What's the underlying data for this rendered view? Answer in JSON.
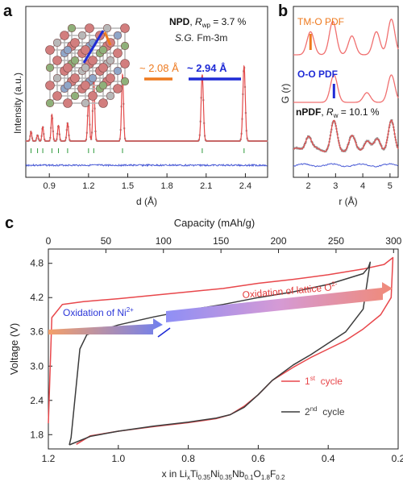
{
  "panels": {
    "a": {
      "letter": "a",
      "ylabel": "Intensity (a.u.)",
      "xlabel": "d (Å)",
      "xticks": [
        "0.9",
        "1.2",
        "1.5",
        "1.8",
        "2.1",
        "2.4"
      ],
      "npd_label": "NPD",
      "rwp_symbol": "R",
      "rwp_sub": "wp",
      "rwp_value": " = 3.7 %",
      "sg_prefix": "S.G.",
      "sg_value": " Fm-3m",
      "dist_orange": "~ 2.08 Å",
      "dist_blue": "~ 2.94 Å"
    },
    "b": {
      "letter": "b",
      "ylabel": "G (r)",
      "xlabel": "r (Å)",
      "xticks": [
        "2",
        "3",
        "4",
        "5"
      ],
      "label_tmo": "TM-O PDF",
      "label_oo": "O-O PDF",
      "npdf_label": "nPDF",
      "rw_symbol": "R",
      "rw_sub": "w",
      "rw_value": " = 10.1 %"
    },
    "c": {
      "letter": "c",
      "top_axis_label": "Capacity (mAh/g)",
      "top_ticks": [
        "0",
        "50",
        "100",
        "150",
        "200",
        "250",
        "300"
      ],
      "ylabel": "Voltage (V)",
      "yticks": [
        "1.8",
        "2.4",
        "3.0",
        "3.6",
        "4.2",
        "4.8"
      ],
      "xticks": [
        "1.2",
        "1.0",
        "0.8",
        "0.6",
        "0.4",
        "0.2"
      ],
      "xlabel_parts": [
        "x in Li",
        "x",
        "Ti",
        "0.35",
        "Ni",
        "0.35",
        "Nb",
        "0.1",
        "O",
        "1.8",
        "F",
        "0.2"
      ],
      "ann_ni": "Oxidation of Ni",
      "ann_ni_sup": "2+",
      "ann_o": "Oxidation of lattice O",
      "ann_o_sup": "2-",
      "legend": [
        {
          "label": "1",
          "sup": "st",
          "rest": "  cycle",
          "color": "#e8474b"
        },
        {
          "label": "2",
          "sup": "nd",
          "rest": "  cycle",
          "color": "#3c3c3c"
        }
      ]
    }
  },
  "colors": {
    "cycle1": "#e8474b",
    "cycle2": "#3c3c3c",
    "fit": "#e34a4a",
    "obs": "#999999",
    "diff": "#4a5bd6",
    "ticks": "#2e9a3c",
    "orange": "#ee7a1f",
    "blue": "#1f2bd6",
    "pdf": "#f07070"
  },
  "chart_data": [
    {
      "panel": "a",
      "type": "line",
      "xlabel": "d (Å)",
      "ylabel": "Intensity (a.u.)",
      "xlim": [
        0.72,
        2.57
      ],
      "peaks_d": [
        0.76,
        0.81,
        0.85,
        0.92,
        0.97,
        1.04,
        1.2,
        1.24,
        1.46,
        2.07,
        2.39
      ],
      "peaks_h": [
        0.08,
        0.05,
        0.12,
        0.22,
        0.13,
        0.15,
        0.35,
        0.52,
        0.55,
        0.55,
        0.62
      ],
      "bragg_ticks_d": [
        0.76,
        0.81,
        0.85,
        0.92,
        0.97,
        1.04,
        1.2,
        1.24,
        1.46,
        2.07,
        2.39
      ],
      "series": [
        {
          "name": "NPD"
        }
      ]
    },
    {
      "panel": "b",
      "type": "line",
      "xlabel": "r (Å)",
      "ylabel": "G (r)",
      "xlim": [
        1.45,
        5.3
      ],
      "series": [
        {
          "name": "TM-O PDF",
          "peaks_r": [
            2.08,
            2.9,
            3.6,
            4.5,
            5.05
          ],
          "peaks_h": [
            0.55,
            0.8,
            0.45,
            0.55,
            0.85
          ]
        },
        {
          "name": "O-O PDF",
          "peaks_r": [
            2.94,
            4.15,
            5.05
          ],
          "peaks_h": [
            0.85,
            0.3,
            0.85
          ]
        },
        {
          "name": "nPDF",
          "peaks_r": [
            2.0,
            2.94,
            3.6,
            4.15,
            4.55,
            5.05
          ],
          "peaks_h": [
            0.4,
            0.75,
            0.35,
            0.25,
            0.3,
            0.75
          ]
        }
      ]
    },
    {
      "panel": "c",
      "type": "line",
      "xlabel": "x in LixTi0.35Ni0.35Nb0.1O1.8F0.2",
      "ylabel": "Voltage (V)",
      "top_xlabel": "Capacity (mAh/g)",
      "xlim": [
        1.2,
        0.2
      ],
      "ylim": [
        1.55,
        5.05
      ],
      "series": [
        {
          "name": "1st cycle",
          "x": [
            1.2,
            1.19,
            1.16,
            1.1,
            1.0,
            0.9,
            0.8,
            0.7,
            0.6,
            0.5,
            0.4,
            0.3,
            0.24,
            0.215,
            0.22,
            0.25,
            0.3,
            0.35,
            0.4,
            0.45,
            0.5,
            0.56,
            0.6,
            0.64,
            0.68,
            0.72,
            0.8,
            0.9,
            1.0,
            1.08,
            1.12
          ],
          "y": [
            2.0,
            3.85,
            4.08,
            4.13,
            4.18,
            4.24,
            4.3,
            4.36,
            4.45,
            4.52,
            4.6,
            4.7,
            4.78,
            4.9,
            4.2,
            3.9,
            3.65,
            3.45,
            3.3,
            3.15,
            2.98,
            2.75,
            2.5,
            2.3,
            2.15,
            2.08,
            2.01,
            1.94,
            1.86,
            1.78,
            1.63
          ]
        },
        {
          "name": "2nd cycle",
          "x": [
            1.14,
            1.135,
            1.11,
            1.09,
            1.0,
            0.9,
            0.8,
            0.7,
            0.6,
            0.5,
            0.4,
            0.3,
            0.285,
            0.28,
            0.3,
            0.35,
            0.4,
            0.45,
            0.5,
            0.56,
            0.6,
            0.64,
            0.68,
            0.72,
            0.8,
            0.9,
            1.0,
            1.08,
            1.14
          ],
          "y": [
            1.62,
            1.75,
            3.3,
            3.55,
            3.72,
            3.86,
            3.98,
            4.08,
            4.2,
            4.3,
            4.43,
            4.62,
            4.73,
            4.82,
            4.0,
            3.6,
            3.4,
            3.2,
            3.02,
            2.75,
            2.5,
            2.28,
            2.15,
            2.09,
            2.02,
            1.95,
            1.86,
            1.77,
            1.62
          ]
        }
      ]
    }
  ]
}
